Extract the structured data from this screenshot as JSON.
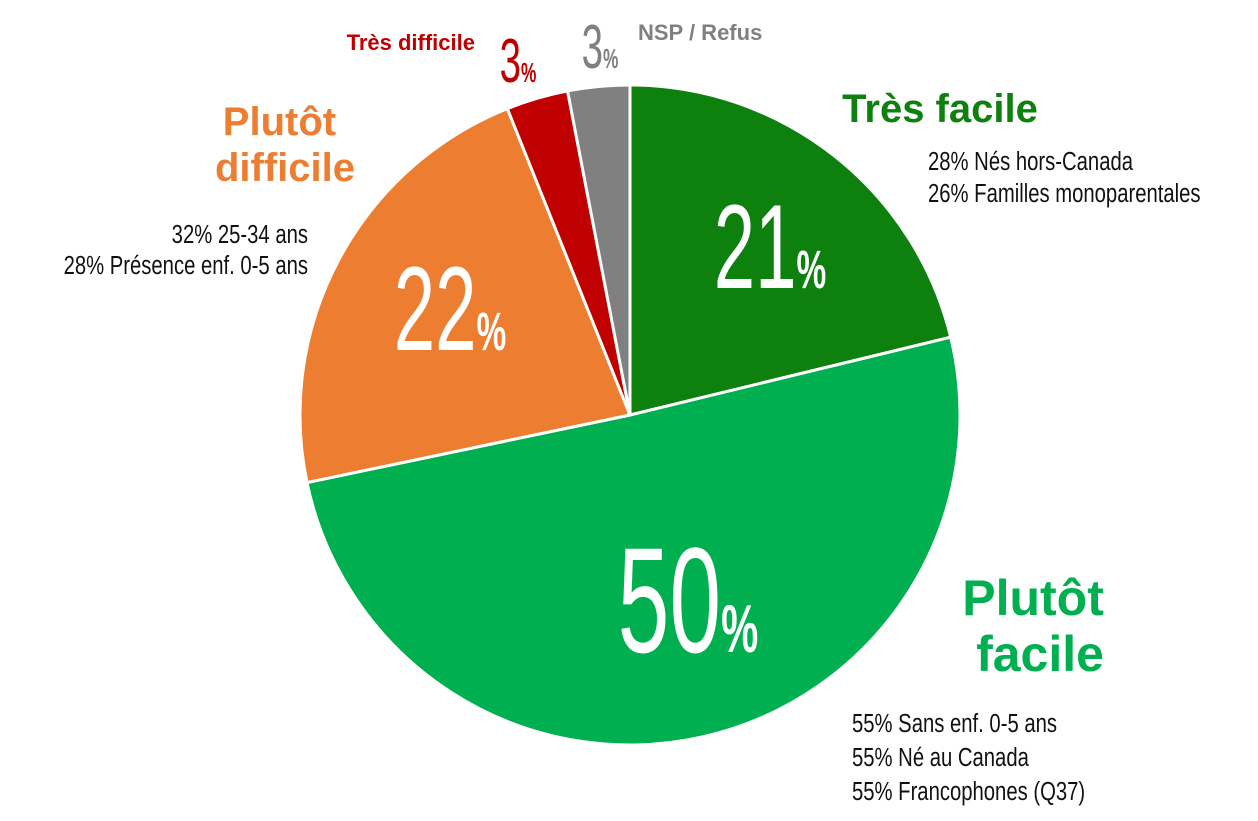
{
  "chart_data": {
    "type": "pie",
    "categories": [
      "Très facile",
      "Plutôt facile",
      "Plutôt difficile",
      "Très difficile",
      "NSP / Refus"
    ],
    "values": [
      21,
      50,
      22,
      3,
      3
    ],
    "value_labels": [
      "21%",
      "50%",
      "22%",
      "3%",
      "3%"
    ],
    "colors": [
      "#0e800e",
      "#00b050",
      "#ed7d31",
      "#c00000",
      "#808080"
    ],
    "annotations": [
      [
        "28% Nés hors-Canada",
        "26% Familles monoparentales"
      ],
      [
        "55% Sans enf. 0-5 ans",
        "55% Né au Canada",
        "55% Francophones (Q37)"
      ],
      [
        "32% 25-34 ans",
        "28% Présence enf. 0-5 ans"
      ]
    ]
  }
}
